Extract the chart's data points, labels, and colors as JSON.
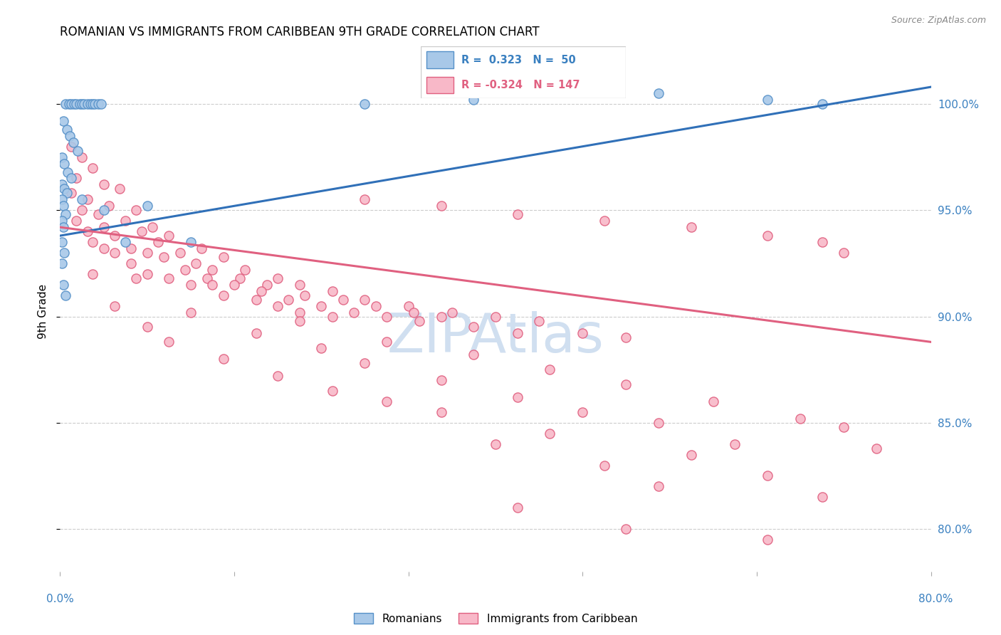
{
  "title": "ROMANIAN VS IMMIGRANTS FROM CARIBBEAN 9TH GRADE CORRELATION CHART",
  "source": "Source: ZipAtlas.com",
  "ylabel": "9th Grade",
  "yticks": [
    80.0,
    85.0,
    90.0,
    95.0,
    100.0
  ],
  "ytick_labels": [
    "80.0%",
    "85.0%",
    "90.0%",
    "95.0%",
    "100.0%"
  ],
  "xlim": [
    0.0,
    80.0
  ],
  "ylim": [
    78.0,
    102.5
  ],
  "blue_color": "#a8c8e8",
  "blue_edge_color": "#5590c8",
  "pink_color": "#f8b8c8",
  "pink_edge_color": "#e06080",
  "blue_line_color": "#3070b8",
  "pink_line_color": "#e06080",
  "watermark_color": "#d0dff0",
  "blue_trendline": [
    [
      0.0,
      93.8
    ],
    [
      80.0,
      100.8
    ]
  ],
  "pink_trendline": [
    [
      0.0,
      94.2
    ],
    [
      80.0,
      88.8
    ]
  ],
  "blue_scatter": [
    [
      0.5,
      100.0
    ],
    [
      0.8,
      100.0
    ],
    [
      1.0,
      100.0
    ],
    [
      1.3,
      100.0
    ],
    [
      1.5,
      100.0
    ],
    [
      1.8,
      100.0
    ],
    [
      2.0,
      100.0
    ],
    [
      2.2,
      100.0
    ],
    [
      2.5,
      100.0
    ],
    [
      2.8,
      100.0
    ],
    [
      3.0,
      100.0
    ],
    [
      3.2,
      100.0
    ],
    [
      3.5,
      100.0
    ],
    [
      3.8,
      100.0
    ],
    [
      0.3,
      99.2
    ],
    [
      0.6,
      98.8
    ],
    [
      0.9,
      98.5
    ],
    [
      1.2,
      98.2
    ],
    [
      1.6,
      97.8
    ],
    [
      0.2,
      97.5
    ],
    [
      0.4,
      97.2
    ],
    [
      0.7,
      96.8
    ],
    [
      1.0,
      96.5
    ],
    [
      0.2,
      96.2
    ],
    [
      0.4,
      96.0
    ],
    [
      0.6,
      95.8
    ],
    [
      0.2,
      95.5
    ],
    [
      0.3,
      95.2
    ],
    [
      0.5,
      94.8
    ],
    [
      0.2,
      94.5
    ],
    [
      0.3,
      94.2
    ],
    [
      0.2,
      93.5
    ],
    [
      0.4,
      93.0
    ],
    [
      0.2,
      92.5
    ],
    [
      2.0,
      95.5
    ],
    [
      4.0,
      95.0
    ],
    [
      8.0,
      95.2
    ],
    [
      28.0,
      100.0
    ],
    [
      38.0,
      100.2
    ],
    [
      55.0,
      100.5
    ],
    [
      65.0,
      100.2
    ],
    [
      70.0,
      100.0
    ],
    [
      0.3,
      91.5
    ],
    [
      0.5,
      91.0
    ],
    [
      6.0,
      93.5
    ],
    [
      12.0,
      93.5
    ]
  ],
  "pink_scatter": [
    [
      1.0,
      98.0
    ],
    [
      2.0,
      97.5
    ],
    [
      3.0,
      97.0
    ],
    [
      1.5,
      96.5
    ],
    [
      4.0,
      96.2
    ],
    [
      5.5,
      96.0
    ],
    [
      1.0,
      95.8
    ],
    [
      2.5,
      95.5
    ],
    [
      4.5,
      95.2
    ],
    [
      7.0,
      95.0
    ],
    [
      2.0,
      95.0
    ],
    [
      3.5,
      94.8
    ],
    [
      6.0,
      94.5
    ],
    [
      8.5,
      94.2
    ],
    [
      1.5,
      94.5
    ],
    [
      4.0,
      94.2
    ],
    [
      7.5,
      94.0
    ],
    [
      10.0,
      93.8
    ],
    [
      2.5,
      94.0
    ],
    [
      5.0,
      93.8
    ],
    [
      9.0,
      93.5
    ],
    [
      13.0,
      93.2
    ],
    [
      3.0,
      93.5
    ],
    [
      6.5,
      93.2
    ],
    [
      11.0,
      93.0
    ],
    [
      15.0,
      92.8
    ],
    [
      4.0,
      93.2
    ],
    [
      8.0,
      93.0
    ],
    [
      12.5,
      92.5
    ],
    [
      17.0,
      92.2
    ],
    [
      5.0,
      93.0
    ],
    [
      9.5,
      92.8
    ],
    [
      14.0,
      92.2
    ],
    [
      20.0,
      91.8
    ],
    [
      6.5,
      92.5
    ],
    [
      11.5,
      92.2
    ],
    [
      16.5,
      91.8
    ],
    [
      22.0,
      91.5
    ],
    [
      8.0,
      92.0
    ],
    [
      13.5,
      91.8
    ],
    [
      19.0,
      91.5
    ],
    [
      25.0,
      91.2
    ],
    [
      10.0,
      91.8
    ],
    [
      16.0,
      91.5
    ],
    [
      22.5,
      91.0
    ],
    [
      28.0,
      90.8
    ],
    [
      12.0,
      91.5
    ],
    [
      18.5,
      91.2
    ],
    [
      26.0,
      90.8
    ],
    [
      32.0,
      90.5
    ],
    [
      15.0,
      91.0
    ],
    [
      21.0,
      90.8
    ],
    [
      29.0,
      90.5
    ],
    [
      36.0,
      90.2
    ],
    [
      18.0,
      90.8
    ],
    [
      24.0,
      90.5
    ],
    [
      32.5,
      90.2
    ],
    [
      40.0,
      90.0
    ],
    [
      20.0,
      90.5
    ],
    [
      27.0,
      90.2
    ],
    [
      35.0,
      90.0
    ],
    [
      44.0,
      89.8
    ],
    [
      22.0,
      90.2
    ],
    [
      30.0,
      90.0
    ],
    [
      38.0,
      89.5
    ],
    [
      48.0,
      89.2
    ],
    [
      25.0,
      90.0
    ],
    [
      33.0,
      89.8
    ],
    [
      42.0,
      89.2
    ],
    [
      52.0,
      89.0
    ],
    [
      28.0,
      95.5
    ],
    [
      35.0,
      95.2
    ],
    [
      42.0,
      94.8
    ],
    [
      50.0,
      94.5
    ],
    [
      58.0,
      94.2
    ],
    [
      65.0,
      93.8
    ],
    [
      70.0,
      93.5
    ],
    [
      72.0,
      93.0
    ],
    [
      3.0,
      92.0
    ],
    [
      7.0,
      91.8
    ],
    [
      14.0,
      91.5
    ],
    [
      5.0,
      90.5
    ],
    [
      12.0,
      90.2
    ],
    [
      22.0,
      89.8
    ],
    [
      8.0,
      89.5
    ],
    [
      18.0,
      89.2
    ],
    [
      30.0,
      88.8
    ],
    [
      10.0,
      88.8
    ],
    [
      24.0,
      88.5
    ],
    [
      38.0,
      88.2
    ],
    [
      15.0,
      88.0
    ],
    [
      28.0,
      87.8
    ],
    [
      45.0,
      87.5
    ],
    [
      20.0,
      87.2
    ],
    [
      35.0,
      87.0
    ],
    [
      52.0,
      86.8
    ],
    [
      25.0,
      86.5
    ],
    [
      42.0,
      86.2
    ],
    [
      60.0,
      86.0
    ],
    [
      30.0,
      86.0
    ],
    [
      48.0,
      85.5
    ],
    [
      68.0,
      85.2
    ],
    [
      35.0,
      85.5
    ],
    [
      55.0,
      85.0
    ],
    [
      72.0,
      84.8
    ],
    [
      45.0,
      84.5
    ],
    [
      62.0,
      84.0
    ],
    [
      75.0,
      83.8
    ],
    [
      40.0,
      84.0
    ],
    [
      58.0,
      83.5
    ],
    [
      50.0,
      83.0
    ],
    [
      65.0,
      82.5
    ],
    [
      55.0,
      82.0
    ],
    [
      70.0,
      81.5
    ],
    [
      42.0,
      81.0
    ],
    [
      52.0,
      80.0
    ],
    [
      65.0,
      79.5
    ]
  ]
}
